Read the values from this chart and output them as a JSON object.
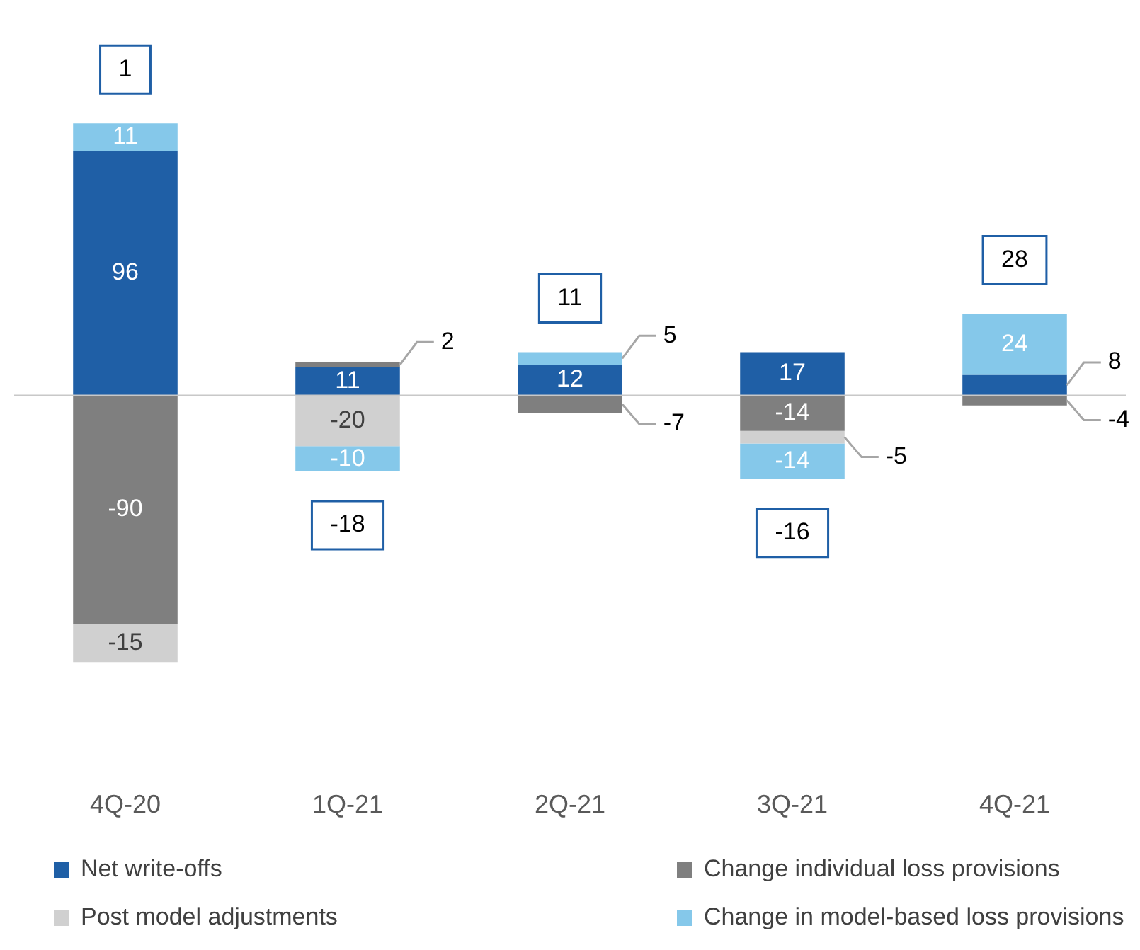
{
  "chart_data": {
    "type": "bar",
    "stacked": true,
    "categories": [
      "4Q-20",
      "1Q-21",
      "2Q-21",
      "3Q-21",
      "4Q-21"
    ],
    "series": [
      {
        "name": "Net write-offs",
        "color": "#1f5fa6",
        "values": [
          96,
          11,
          12,
          17,
          8
        ]
      },
      {
        "name": "Change individual loss provisions",
        "color": "#7f7f7f",
        "values": [
          -90,
          2,
          -7,
          -14,
          -4
        ]
      },
      {
        "name": "Post model adjustments",
        "color": "#d0d0d0",
        "values": [
          -15,
          -20,
          null,
          -5,
          null
        ]
      },
      {
        "name": "Change in model-based loss provisions",
        "color": "#85c8ea",
        "values": [
          11,
          -10,
          5,
          -14,
          24
        ]
      }
    ],
    "totals": [
      "1",
      "-18",
      "11",
      "-16",
      "28"
    ],
    "data_labels": true,
    "grid": false,
    "legend": "bottom"
  }
}
